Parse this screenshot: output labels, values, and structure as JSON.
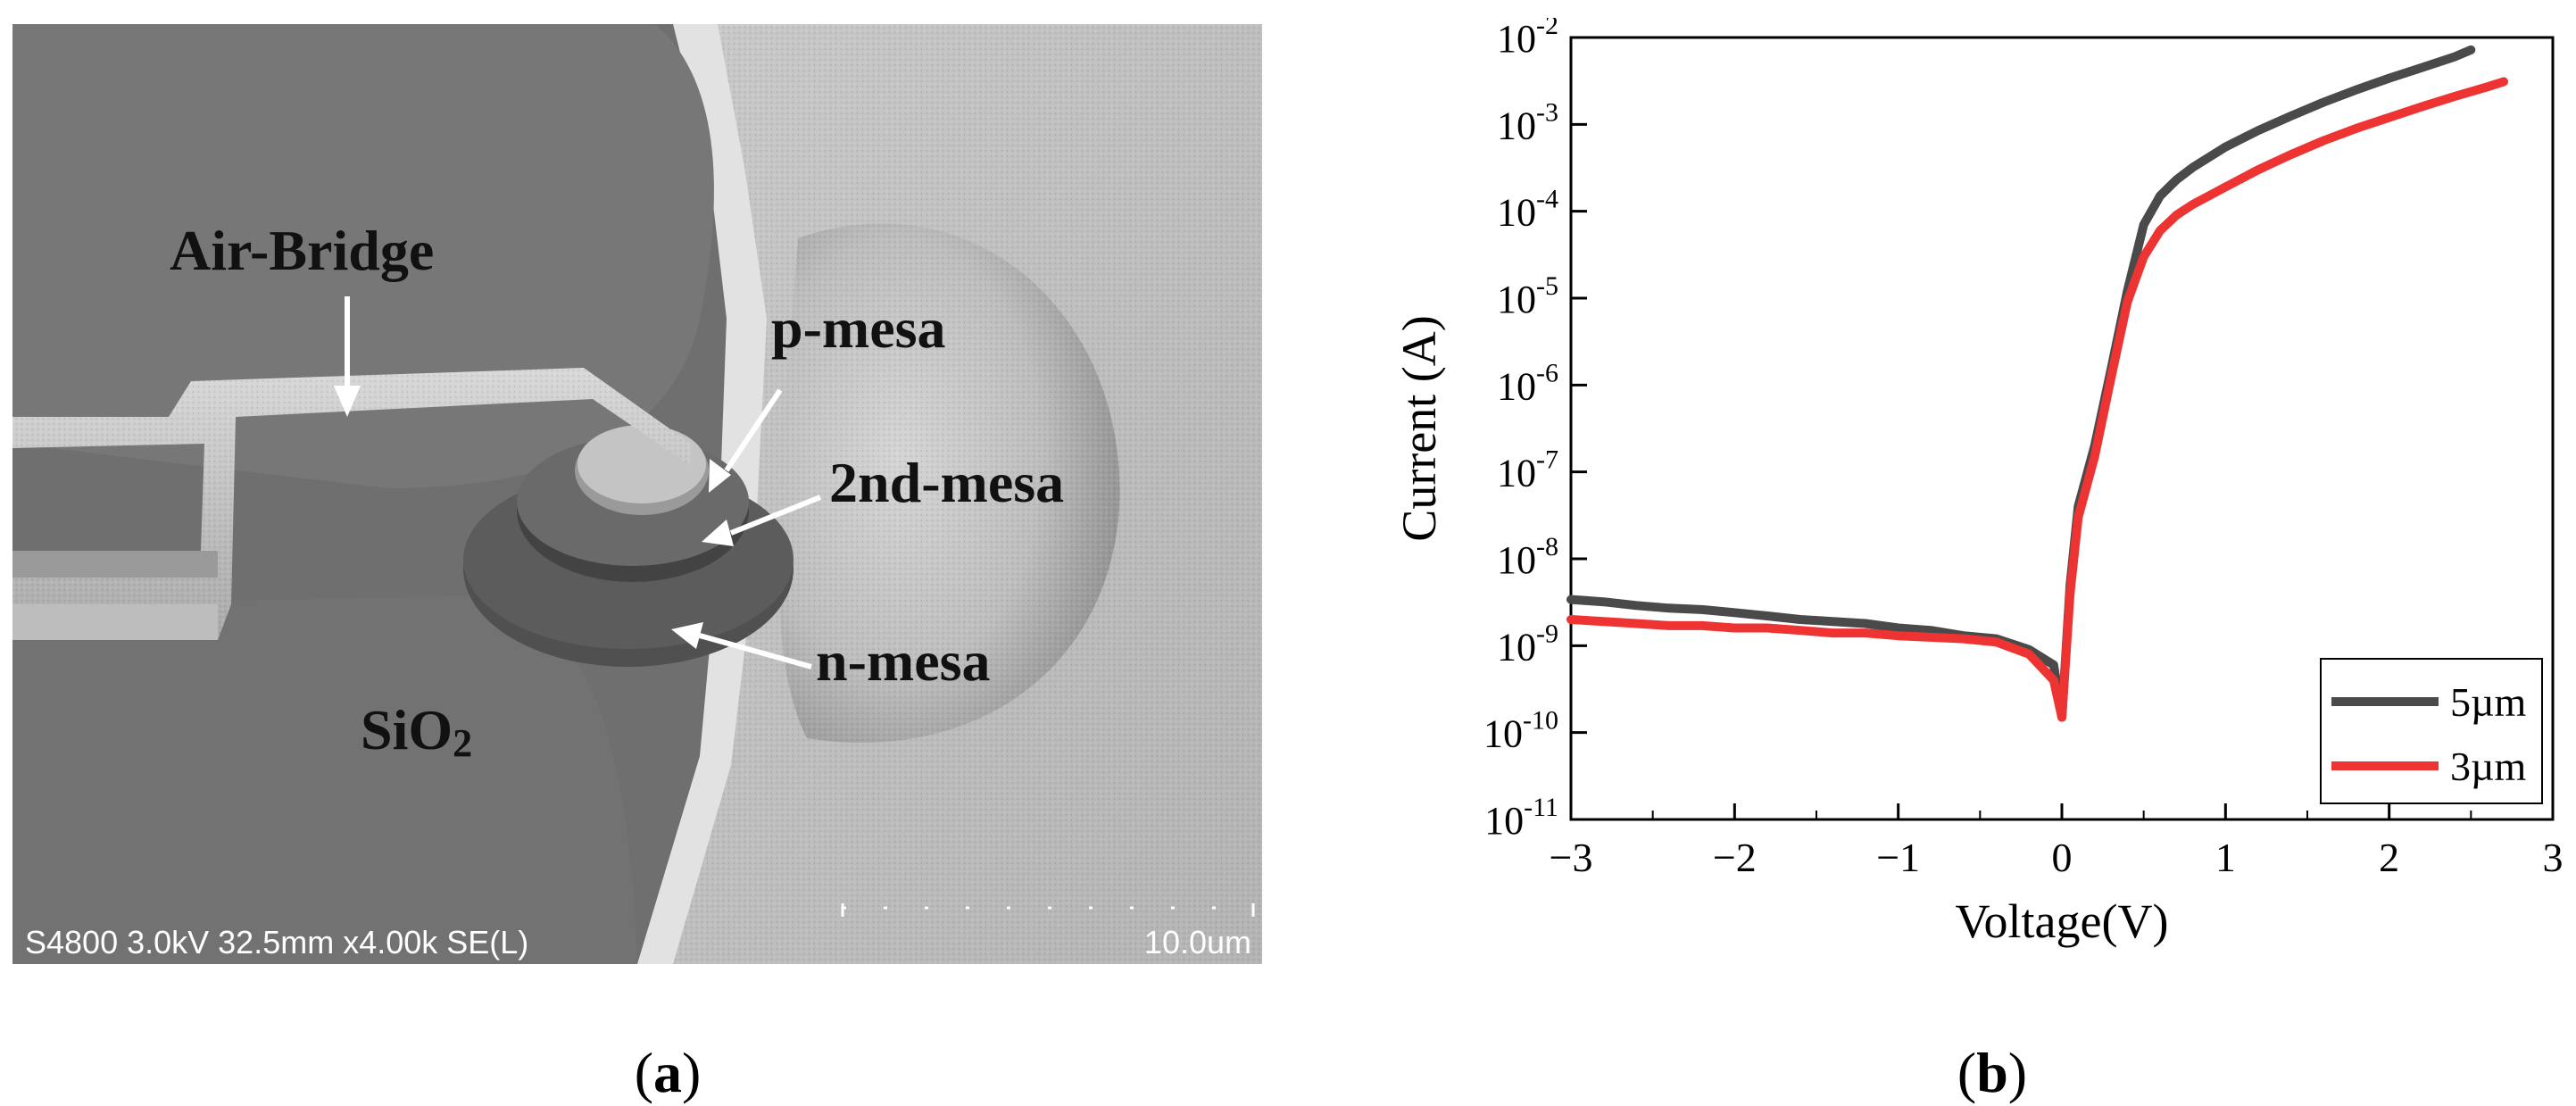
{
  "panel_a": {
    "labels": {
      "air_bridge": "Air-Bridge",
      "p_mesa": "p-mesa",
      "second_mesa": "2nd-mesa",
      "n_mesa": "n-mesa",
      "sio2_main": "SiO",
      "sio2_sub": "2"
    },
    "sem_info": "S4800 3.0kV 32.5mm x4.00k SE(L)",
    "scale_bar_label": "10.0um",
    "colors": {
      "air_bridge_text": "#111111",
      "info_text": "#ffffff",
      "arrow": "#ffffff"
    }
  },
  "captions": {
    "a": {
      "open": "(",
      "letter": "a",
      "close": ")"
    },
    "b": {
      "open": "(",
      "letter": "b",
      "close": ")"
    }
  },
  "chart_data": {
    "type": "line",
    "title": "",
    "xlabel": "Voltage(V)",
    "ylabel": "Current (A)",
    "xlim": [
      -3,
      3
    ],
    "ylim_log10": [
      -11,
      -2
    ],
    "yscale": "log",
    "x_ticks": [
      -3,
      -2,
      -1,
      0,
      1,
      2,
      3
    ],
    "x_tick_labels": [
      "−3",
      "−2",
      "−1",
      "0",
      "1",
      "2",
      "3"
    ],
    "y_ticks_exponent": [
      -11,
      -10,
      -9,
      -8,
      -7,
      -6,
      -5,
      -4,
      -3,
      -2
    ],
    "y_tick_base": "10",
    "grid": false,
    "legend_position": "bottom-right",
    "series": [
      {
        "name": "5µm",
        "color": "#4a4a4a",
        "x": [
          -3.0,
          -2.8,
          -2.6,
          -2.4,
          -2.2,
          -2.0,
          -1.8,
          -1.6,
          -1.4,
          -1.2,
          -1.0,
          -0.8,
          -0.6,
          -0.4,
          -0.2,
          -0.05,
          0.0,
          0.05,
          0.1,
          0.2,
          0.3,
          0.4,
          0.5,
          0.6,
          0.7,
          0.8,
          1.0,
          1.2,
          1.4,
          1.6,
          1.8,
          2.0,
          2.2,
          2.4,
          2.5
        ],
        "y": [
          3.4e-09,
          3.2e-09,
          2.9e-09,
          2.7e-09,
          2.6e-09,
          2.4e-09,
          2.2e-09,
          2e-09,
          1.9e-09,
          1.8e-09,
          1.6e-09,
          1.5e-09,
          1.3e-09,
          1.2e-09,
          9e-10,
          6e-10,
          1.5e-10,
          5e-09,
          4e-08,
          2e-07,
          1.5e-06,
          1.2e-05,
          7e-05,
          0.00015,
          0.00023,
          0.00032,
          0.00055,
          0.00085,
          0.00125,
          0.0018,
          0.0025,
          0.0034,
          0.0045,
          0.006,
          0.0072
        ]
      },
      {
        "name": "3µm",
        "color": "#ee3333",
        "x": [
          -3.0,
          -2.8,
          -2.6,
          -2.4,
          -2.2,
          -2.0,
          -1.8,
          -1.6,
          -1.4,
          -1.2,
          -1.0,
          -0.8,
          -0.6,
          -0.4,
          -0.2,
          -0.05,
          0.0,
          0.05,
          0.1,
          0.2,
          0.3,
          0.4,
          0.5,
          0.6,
          0.7,
          0.8,
          1.0,
          1.2,
          1.4,
          1.6,
          1.8,
          2.0,
          2.2,
          2.4,
          2.6,
          2.7
        ],
        "y": [
          2e-09,
          1.9e-09,
          1.8e-09,
          1.7e-09,
          1.7e-09,
          1.6e-09,
          1.6e-09,
          1.5e-09,
          1.4e-09,
          1.4e-09,
          1.3e-09,
          1.25e-09,
          1.2e-09,
          1.1e-09,
          8e-10,
          4e-10,
          1.5e-10,
          4e-09,
          3e-08,
          1.5e-07,
          1.2e-06,
          9e-06,
          3e-05,
          6e-05,
          9e-05,
          0.00012,
          0.00019,
          0.0003,
          0.00045,
          0.00065,
          0.0009,
          0.0012,
          0.0016,
          0.0021,
          0.0027,
          0.0031
        ]
      }
    ]
  }
}
